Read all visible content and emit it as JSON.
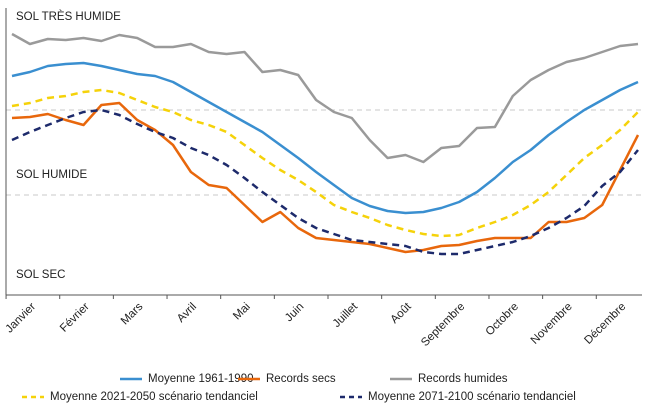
{
  "chart_data": {
    "type": "line",
    "categories": [
      null,
      "Janvier",
      null,
      null,
      "Février",
      null,
      null,
      "Mars",
      null,
      null,
      "Avril",
      null,
      null,
      "Mai",
      null,
      null,
      "Juin",
      null,
      null,
      "Juillet",
      null,
      null,
      "Août",
      null,
      null,
      "Septembre",
      null,
      null,
      "Octobre",
      null,
      null,
      "Novembre",
      null,
      null,
      "Décembre",
      null
    ],
    "ylim": [
      0,
      282
    ],
    "yticks": [
      {
        "value": 273,
        "label": "SOL TRÈS HUMIDE"
      },
      {
        "value": 115,
        "label": "SOL HUMIDE"
      },
      {
        "value": 15,
        "label": "SOL SEC"
      }
    ],
    "grid_lines": [
      180,
      95
    ],
    "series": [
      {
        "name": "Moyenne 1961-1990",
        "color": "#3a8fd0",
        "dashed": false,
        "values": [
          214,
          218,
          224,
          226,
          227,
          224,
          220,
          216,
          214,
          208,
          198,
          188,
          178,
          168,
          158,
          145,
          132,
          118,
          105,
          92,
          84,
          79,
          77,
          78,
          82,
          88,
          98,
          112,
          128,
          140,
          155,
          168,
          180,
          190,
          200,
          208
        ]
      },
      {
        "name": "Records secs",
        "color": "#e8670c",
        "dashed": false,
        "values": [
          172,
          173,
          176,
          170,
          165,
          185,
          187,
          170,
          160,
          145,
          118,
          105,
          102,
          85,
          68,
          78,
          62,
          52,
          50,
          48,
          46,
          42,
          38,
          40,
          44,
          45,
          49,
          52,
          52,
          52,
          68,
          68,
          72,
          85,
          120,
          155
        ]
      },
      {
        "name": "Records humides",
        "color": "#9a9a9a",
        "dashed": false,
        "values": [
          256,
          246,
          251,
          250,
          252,
          249,
          255,
          252,
          243,
          243,
          246,
          238,
          236,
          238,
          218,
          220,
          215,
          190,
          178,
          172,
          150,
          132,
          135,
          128,
          142,
          144,
          162,
          163,
          194,
          210,
          220,
          228,
          232,
          238,
          244,
          246
        ]
      },
      {
        "name": "Moyenne 2021-2050 scénario tendanciel",
        "color": "#f5d20a",
        "dashed": true,
        "values": [
          184,
          187,
          192,
          194,
          198,
          200,
          197,
          190,
          183,
          178,
          170,
          165,
          158,
          145,
          132,
          120,
          110,
          98,
          85,
          78,
          72,
          65,
          60,
          56,
          54,
          55,
          62,
          68,
          75,
          85,
          98,
          115,
          132,
          145,
          160,
          178
        ]
      },
      {
        "name": "Moyenne 2071-2100 scénario tendanciel",
        "color": "#1d2a6b",
        "dashed": true,
        "values": [
          150,
          158,
          165,
          172,
          178,
          180,
          175,
          166,
          158,
          152,
          142,
          135,
          125,
          112,
          98,
          85,
          72,
          62,
          56,
          50,
          48,
          46,
          44,
          38,
          36,
          36,
          40,
          44,
          48,
          54,
          62,
          72,
          84,
          104,
          118,
          140
        ]
      }
    ]
  }
}
